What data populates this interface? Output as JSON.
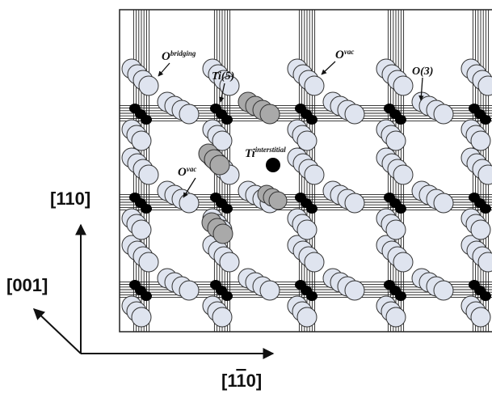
{
  "axes": {
    "vertical": "[110]",
    "diagonal": "[001]",
    "horizontal_prefix": "[1",
    "horizontal_bar": "1",
    "horizontal_suffix": "0]"
  },
  "labels": {
    "o_bridging_main": "O",
    "o_bridging_sub": "bridging",
    "ti5": "Ti(5)",
    "o_vac_top_main": "O",
    "o_vac_top_sub": "vac",
    "o3": "O(3)",
    "ti_interstitial_main": "Ti",
    "ti_interstitial_sub": "interstitial",
    "o_vac_left_main": "O",
    "o_vac_left_sub": "vac"
  },
  "colors": {
    "oxygen": "#dfe4ef",
    "oxygen_highlight": "#a9a9a9",
    "titanium": "#000000",
    "frame": "#222222",
    "bond": "#ffffff"
  }
}
